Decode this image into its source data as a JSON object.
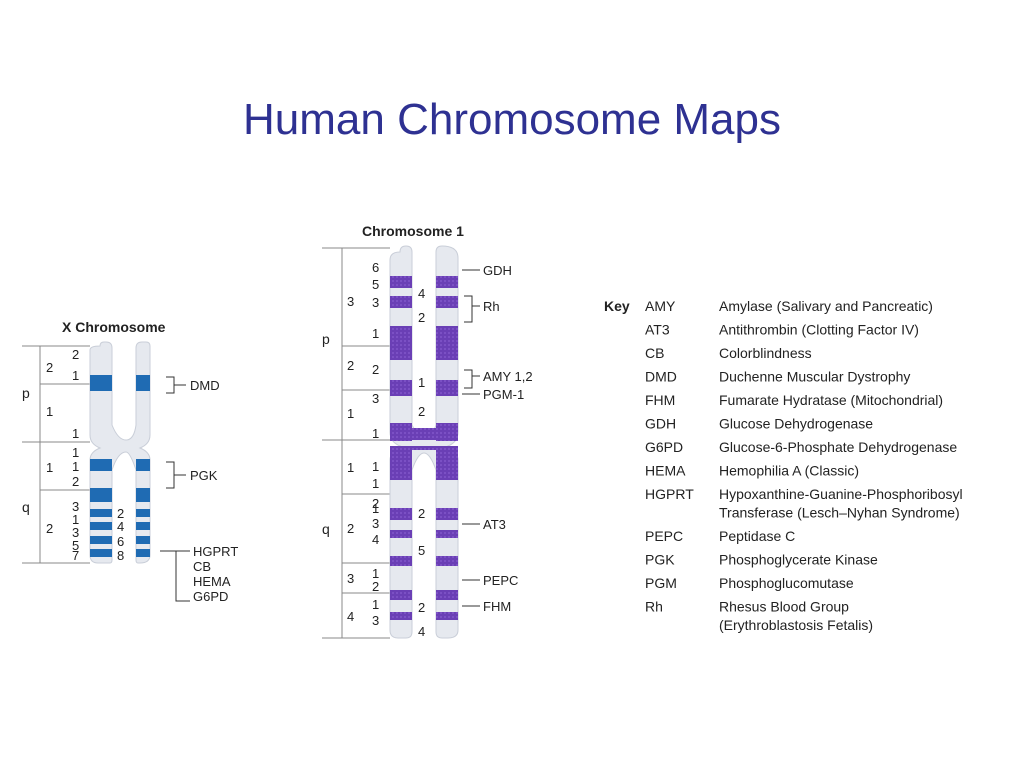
{
  "title": "Human Chromosome Maps",
  "colors": {
    "title": "#2e3192",
    "x_band": "#1f6bb3",
    "chr1_band": "#6a3fb5",
    "chrom_body": "#e6e9ef"
  },
  "x_chromosome": {
    "label": "X Chromosome",
    "arm_p": "p",
    "arm_q": "q",
    "regions": [
      "2",
      "1",
      "1",
      "2"
    ],
    "bands_left": [
      "2",
      "1",
      "1",
      "1",
      "1",
      "2",
      "3",
      "1",
      "3",
      "5",
      "7"
    ],
    "bands_right": [
      "2",
      "4",
      "6",
      "8"
    ],
    "genes": [
      "DMD",
      "PGK",
      "HGPRT",
      "CB",
      "HEMA",
      "G6PD"
    ]
  },
  "chromosome_1": {
    "label": "Chromosome 1",
    "arm_p": "p",
    "arm_q": "q",
    "regions": [
      "3",
      "2",
      "1",
      "1",
      "2",
      "3",
      "4"
    ],
    "bands_left": [
      "6",
      "5",
      "3",
      "1",
      "2",
      "3",
      "1",
      "1",
      "1",
      "2",
      "1",
      "3",
      "4",
      "1",
      "2",
      "1",
      "3"
    ],
    "bands_right": [
      "4",
      "2",
      "1",
      "2",
      "2",
      "5",
      "2",
      "4"
    ],
    "genes": [
      "GDH",
      "Rh",
      "AMY 1,2",
      "PGM-1",
      "AT3",
      "PEPC",
      "FHM"
    ]
  },
  "key": {
    "label": "Key",
    "entries": [
      {
        "abbr": "AMY",
        "desc": "Amylase (Salivary and Pancreatic)"
      },
      {
        "abbr": "AT3",
        "desc": "Antithrombin (Clotting Factor IV)"
      },
      {
        "abbr": "CB",
        "desc": "Colorblindness"
      },
      {
        "abbr": "DMD",
        "desc": "Duchenne Muscular Dystrophy"
      },
      {
        "abbr": "FHM",
        "desc": "Fumarate Hydratase (Mitochondrial)"
      },
      {
        "abbr": "GDH",
        "desc": "Glucose Dehydrogenase"
      },
      {
        "abbr": "G6PD",
        "desc": "Glucose-6-Phosphate Dehydrogenase"
      },
      {
        "abbr": "HEMA",
        "desc": "Hemophilia A (Classic)"
      },
      {
        "abbr": "HGPRT",
        "desc": "Hypoxanthine-Guanine-Phosphoribosyl"
      },
      {
        "abbr": "",
        "desc": "Transferase (Lesch–Nyhan Syndrome)"
      },
      {
        "abbr": "PEPC",
        "desc": "Peptidase C"
      },
      {
        "abbr": "PGK",
        "desc": "Phosphoglycerate Kinase"
      },
      {
        "abbr": "PGM",
        "desc": "Phosphoglucomutase"
      },
      {
        "abbr": "Rh",
        "desc": "Rhesus Blood Group"
      },
      {
        "abbr": "",
        "desc": "(Erythroblastosis Fetalis)"
      }
    ]
  }
}
